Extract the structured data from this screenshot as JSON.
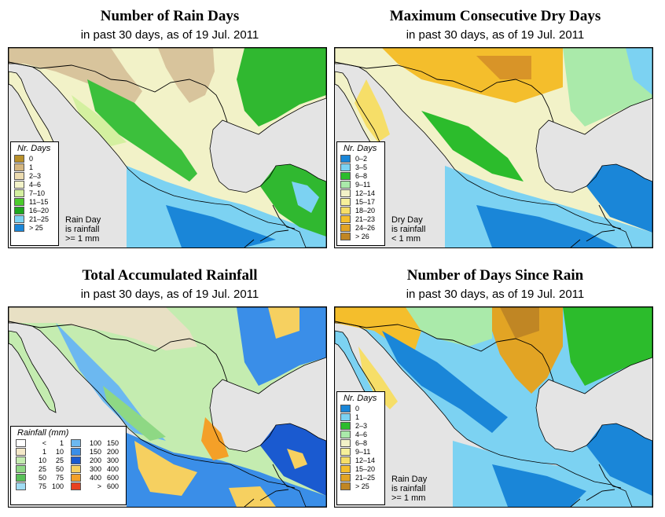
{
  "panels": {
    "rain_days": {
      "title": "Number of Rain Days",
      "subtitle": "in past 30 days, as of  19 Jul. 2011",
      "legend_title": "Nr. Days",
      "legend": [
        {
          "label": "0",
          "color": "#b8902a"
        },
        {
          "label": "1",
          "color": "#d4b680"
        },
        {
          "label": "2–3",
          "color": "#ecdcb0"
        },
        {
          "label": "4–6",
          "color": "#f2f2c8"
        },
        {
          "label": "7–10",
          "color": "#d4f0a0"
        },
        {
          "label": "11–15",
          "color": "#4ccc2c"
        },
        {
          "label": "16–20",
          "color": "#1ea81e"
        },
        {
          "label": "21–25",
          "color": "#7cd2f2"
        },
        {
          "label": "> 25",
          "color": "#1a86d8"
        }
      ],
      "note": [
        "Rain Day",
        "is rainfall",
        ">= 1 mm"
      ]
    },
    "dry_days": {
      "title": "Maximum Consecutive Dry Days",
      "subtitle": "in past 30 days, as of  19 Jul. 2011",
      "legend_title": "Nr. Days",
      "legend": [
        {
          "label": "0–2",
          "color": "#1a86d8"
        },
        {
          "label": "3–5",
          "color": "#7cd2f2"
        },
        {
          "label": "6–8",
          "color": "#2cbc2c"
        },
        {
          "label": "9–11",
          "color": "#aaeaaa"
        },
        {
          "label": "12–14",
          "color": "#f2f2c8"
        },
        {
          "label": "15–17",
          "color": "#f6f09a"
        },
        {
          "label": "18–20",
          "color": "#f6de68"
        },
        {
          "label": "21–23",
          "color": "#f4be2c"
        },
        {
          "label": "24–26",
          "color": "#e2a424"
        },
        {
          "label": "> 26",
          "color": "#c08624"
        }
      ],
      "note": [
        "Dry Day",
        "is rainfall",
        "< 1 mm"
      ]
    },
    "rainfall": {
      "title": "Total Accumulated Rainfall",
      "subtitle": "in past 30 days, as of  19 Jul. 2011",
      "legend_title": "Rainfall (mm)",
      "legend_left": [
        {
          "lo": "<",
          "hi": "1",
          "color": "#ffffff"
        },
        {
          "lo": "1",
          "hi": "10",
          "color": "#f4e8c8"
        },
        {
          "lo": "10",
          "hi": "25",
          "color": "#c4ecb0"
        },
        {
          "lo": "25",
          "hi": "50",
          "color": "#8ed884"
        },
        {
          "lo": "50",
          "hi": "75",
          "color": "#58c058"
        },
        {
          "lo": "75",
          "hi": "100",
          "color": "#a0dcf4"
        }
      ],
      "legend_right": [
        {
          "lo": "100",
          "hi": "150",
          "color": "#6cb8f0"
        },
        {
          "lo": "150",
          "hi": "200",
          "color": "#3a8ee8"
        },
        {
          "lo": "200",
          "hi": "300",
          "color": "#1a5ad0"
        },
        {
          "lo": "300",
          "hi": "400",
          "color": "#f6d060"
        },
        {
          "lo": "400",
          "hi": "600",
          "color": "#f4a028"
        },
        {
          "lo": ">",
          "hi": "600",
          "color": "#e84020"
        }
      ]
    },
    "since_rain": {
      "title": "Number of Days Since Rain",
      "subtitle": "in past 30 days, as of  19 Jul. 2011",
      "legend_title": "Nr. Days",
      "legend": [
        {
          "label": "0",
          "color": "#1a86d8"
        },
        {
          "label": "1",
          "color": "#7cd2f2"
        },
        {
          "label": "2–3",
          "color": "#2cbc2c"
        },
        {
          "label": "4–6",
          "color": "#aaeaaa"
        },
        {
          "label": "6–8",
          "color": "#f2f2c8"
        },
        {
          "label": "9–11",
          "color": "#f6f09a"
        },
        {
          "label": "12–14",
          "color": "#f6de68"
        },
        {
          "label": "15–20",
          "color": "#f4be2c"
        },
        {
          "label": "21–25",
          "color": "#e2a424"
        },
        {
          "label": "> 25",
          "color": "#c08624"
        }
      ],
      "note": [
        "Rain Day",
        "is rainfall",
        ">= 1 mm"
      ]
    }
  }
}
